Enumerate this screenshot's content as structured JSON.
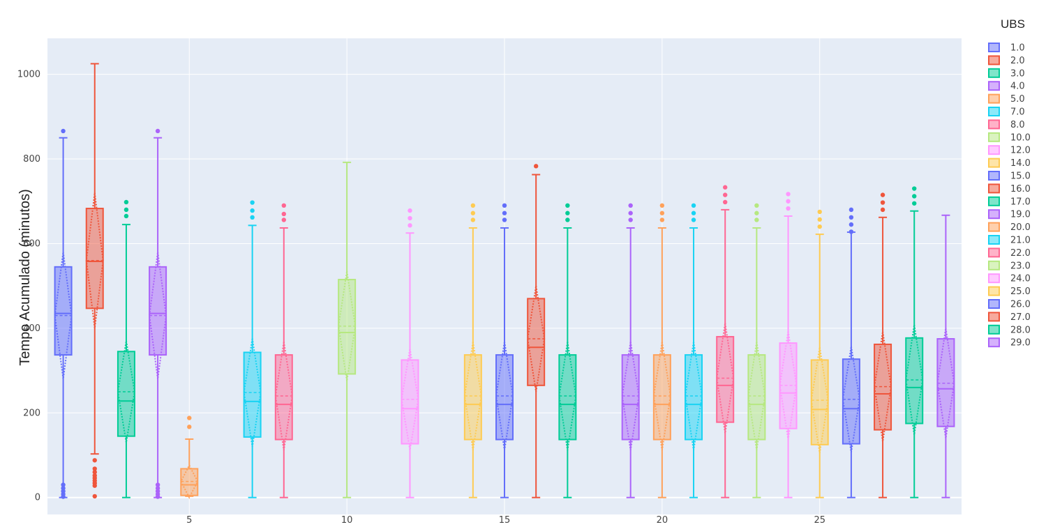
{
  "chart_data": {
    "type": "box",
    "title": "",
    "xlabel": "",
    "ylabel": "Tempo Acumulado (minutos)",
    "legend_title": "UBS",
    "legend_position": "right",
    "grid": true,
    "xlim": [
      0.5,
      29.5
    ],
    "ylim": [
      -40,
      1085
    ],
    "x_ticks": [
      5,
      10,
      15,
      20,
      25
    ],
    "y_ticks": [
      0,
      200,
      400,
      600,
      800,
      1000
    ],
    "series": [
      {
        "name": "1.0",
        "x": 1,
        "color": "#636efa",
        "min": 0,
        "q1": 337,
        "median": 435,
        "q3": 545,
        "max": 850,
        "mean": 430,
        "sd": 150,
        "outliers": [
          866,
          30,
          22,
          15,
          8,
          2
        ]
      },
      {
        "name": "2.0",
        "x": 2,
        "color": "#ef553b",
        "min": 103,
        "q1": 447,
        "median": 558,
        "q3": 683,
        "max": 1025,
        "mean": 560,
        "sd": 160,
        "outliers": [
          88,
          68,
          60,
          52,
          46,
          40,
          34,
          28,
          3
        ]
      },
      {
        "name": "3.0",
        "x": 3,
        "color": "#00cc96",
        "min": 0,
        "q1": 145,
        "median": 228,
        "q3": 345,
        "max": 645,
        "mean": 250,
        "sd": 120,
        "outliers": [
          698,
          680,
          665
        ]
      },
      {
        "name": "4.0",
        "x": 4,
        "color": "#ab63fa",
        "min": 0,
        "q1": 337,
        "median": 435,
        "q3": 545,
        "max": 850,
        "mean": 430,
        "sd": 150,
        "outliers": [
          866,
          30,
          22,
          15,
          8,
          2
        ]
      },
      {
        "name": "5.0",
        "x": 5,
        "color": "#ffa15a",
        "min": 3,
        "q1": 5,
        "median": 30,
        "q3": 68,
        "max": 138,
        "mean": 38,
        "sd": 38,
        "outliers": [
          188,
          167
        ]
      },
      {
        "name": "7.0",
        "x": 7,
        "color": "#19d3f3",
        "min": 0,
        "q1": 143,
        "median": 227,
        "q3": 343,
        "max": 643,
        "mean": 248,
        "sd": 128,
        "outliers": [
          697,
          678,
          662
        ]
      },
      {
        "name": "8.0",
        "x": 8,
        "color": "#ff6692",
        "min": 0,
        "q1": 137,
        "median": 220,
        "q3": 337,
        "max": 637,
        "mean": 240,
        "sd": 128,
        "outliers": [
          690,
          670,
          656
        ]
      },
      {
        "name": "10.0",
        "x": 10,
        "color": "#b6e880",
        "min": 0,
        "q1": 292,
        "median": 390,
        "q3": 515,
        "max": 792,
        "mean": 405,
        "sd": 130,
        "outliers": []
      },
      {
        "name": "12.0",
        "x": 12,
        "color": "#ff97ff",
        "min": 0,
        "q1": 127,
        "median": 210,
        "q3": 325,
        "max": 625,
        "mean": 232,
        "sd": 120,
        "outliers": [
          678,
          660,
          643
        ]
      },
      {
        "name": "14.0",
        "x": 14,
        "color": "#fecb52",
        "min": 0,
        "q1": 137,
        "median": 220,
        "q3": 337,
        "max": 637,
        "mean": 240,
        "sd": 128,
        "outliers": [
          690,
          672,
          656
        ]
      },
      {
        "name": "15.0",
        "x": 15,
        "color": "#636efa",
        "min": 0,
        "q1": 137,
        "median": 220,
        "q3": 337,
        "max": 637,
        "mean": 240,
        "sd": 128,
        "outliers": [
          690,
          672,
          656
        ]
      },
      {
        "name": "16.0",
        "x": 16,
        "color": "#ef553b",
        "min": 0,
        "q1": 265,
        "median": 355,
        "q3": 470,
        "max": 763,
        "mean": 375,
        "sd": 125,
        "outliers": [
          783
        ]
      },
      {
        "name": "17.0",
        "x": 17,
        "color": "#00cc96",
        "min": 0,
        "q1": 137,
        "median": 220,
        "q3": 337,
        "max": 637,
        "mean": 240,
        "sd": 128,
        "outliers": [
          690,
          672,
          656
        ]
      },
      {
        "name": "19.0",
        "x": 19,
        "color": "#ab63fa",
        "min": 0,
        "q1": 137,
        "median": 220,
        "q3": 337,
        "max": 637,
        "mean": 240,
        "sd": 128,
        "outliers": [
          690,
          672,
          656
        ]
      },
      {
        "name": "20.0",
        "x": 20,
        "color": "#ffa15a",
        "min": 0,
        "q1": 137,
        "median": 220,
        "q3": 337,
        "max": 637,
        "mean": 240,
        "sd": 128,
        "outliers": [
          690,
          672,
          656
        ]
      },
      {
        "name": "21.0",
        "x": 21,
        "color": "#19d3f3",
        "min": 0,
        "q1": 137,
        "median": 220,
        "q3": 337,
        "max": 637,
        "mean": 240,
        "sd": 128,
        "outliers": [
          690,
          672,
          656
        ]
      },
      {
        "name": "22.0",
        "x": 22,
        "color": "#ff6692",
        "min": 0,
        "q1": 178,
        "median": 265,
        "q3": 380,
        "max": 680,
        "mean": 282,
        "sd": 130,
        "outliers": [
          733,
          715,
          698
        ]
      },
      {
        "name": "23.0",
        "x": 23,
        "color": "#b6e880",
        "min": 0,
        "q1": 137,
        "median": 220,
        "q3": 337,
        "max": 637,
        "mean": 240,
        "sd": 128,
        "outliers": [
          690,
          672,
          656
        ]
      },
      {
        "name": "24.0",
        "x": 24,
        "color": "#ff97ff",
        "min": 0,
        "q1": 163,
        "median": 247,
        "q3": 365,
        "max": 665,
        "mean": 265,
        "sd": 128,
        "outliers": [
          717,
          700,
          683
        ]
      },
      {
        "name": "25.0",
        "x": 25,
        "color": "#fecb52",
        "min": 0,
        "q1": 125,
        "median": 208,
        "q3": 325,
        "max": 622,
        "mean": 230,
        "sd": 125,
        "outliers": [
          675,
          657,
          640
        ]
      },
      {
        "name": "26.0",
        "x": 26,
        "color": "#636efa",
        "min": 0,
        "q1": 127,
        "median": 210,
        "q3": 327,
        "max": 627,
        "mean": 232,
        "sd": 125,
        "outliers": [
          680,
          662,
          645,
          628
        ]
      },
      {
        "name": "27.0",
        "x": 27,
        "color": "#ef553b",
        "min": 0,
        "q1": 160,
        "median": 245,
        "q3": 362,
        "max": 662,
        "mean": 262,
        "sd": 130,
        "outliers": [
          715,
          697,
          680
        ]
      },
      {
        "name": "28.0",
        "x": 28,
        "color": "#00cc96",
        "min": 0,
        "q1": 175,
        "median": 260,
        "q3": 377,
        "max": 677,
        "mean": 278,
        "sd": 130,
        "outliers": [
          730,
          712,
          695
        ]
      },
      {
        "name": "29.0",
        "x": 29,
        "color": "#ab63fa",
        "min": 0,
        "q1": 168,
        "median": 257,
        "q3": 375,
        "max": 667,
        "mean": 270,
        "sd": 130,
        "outliers": []
      }
    ]
  }
}
